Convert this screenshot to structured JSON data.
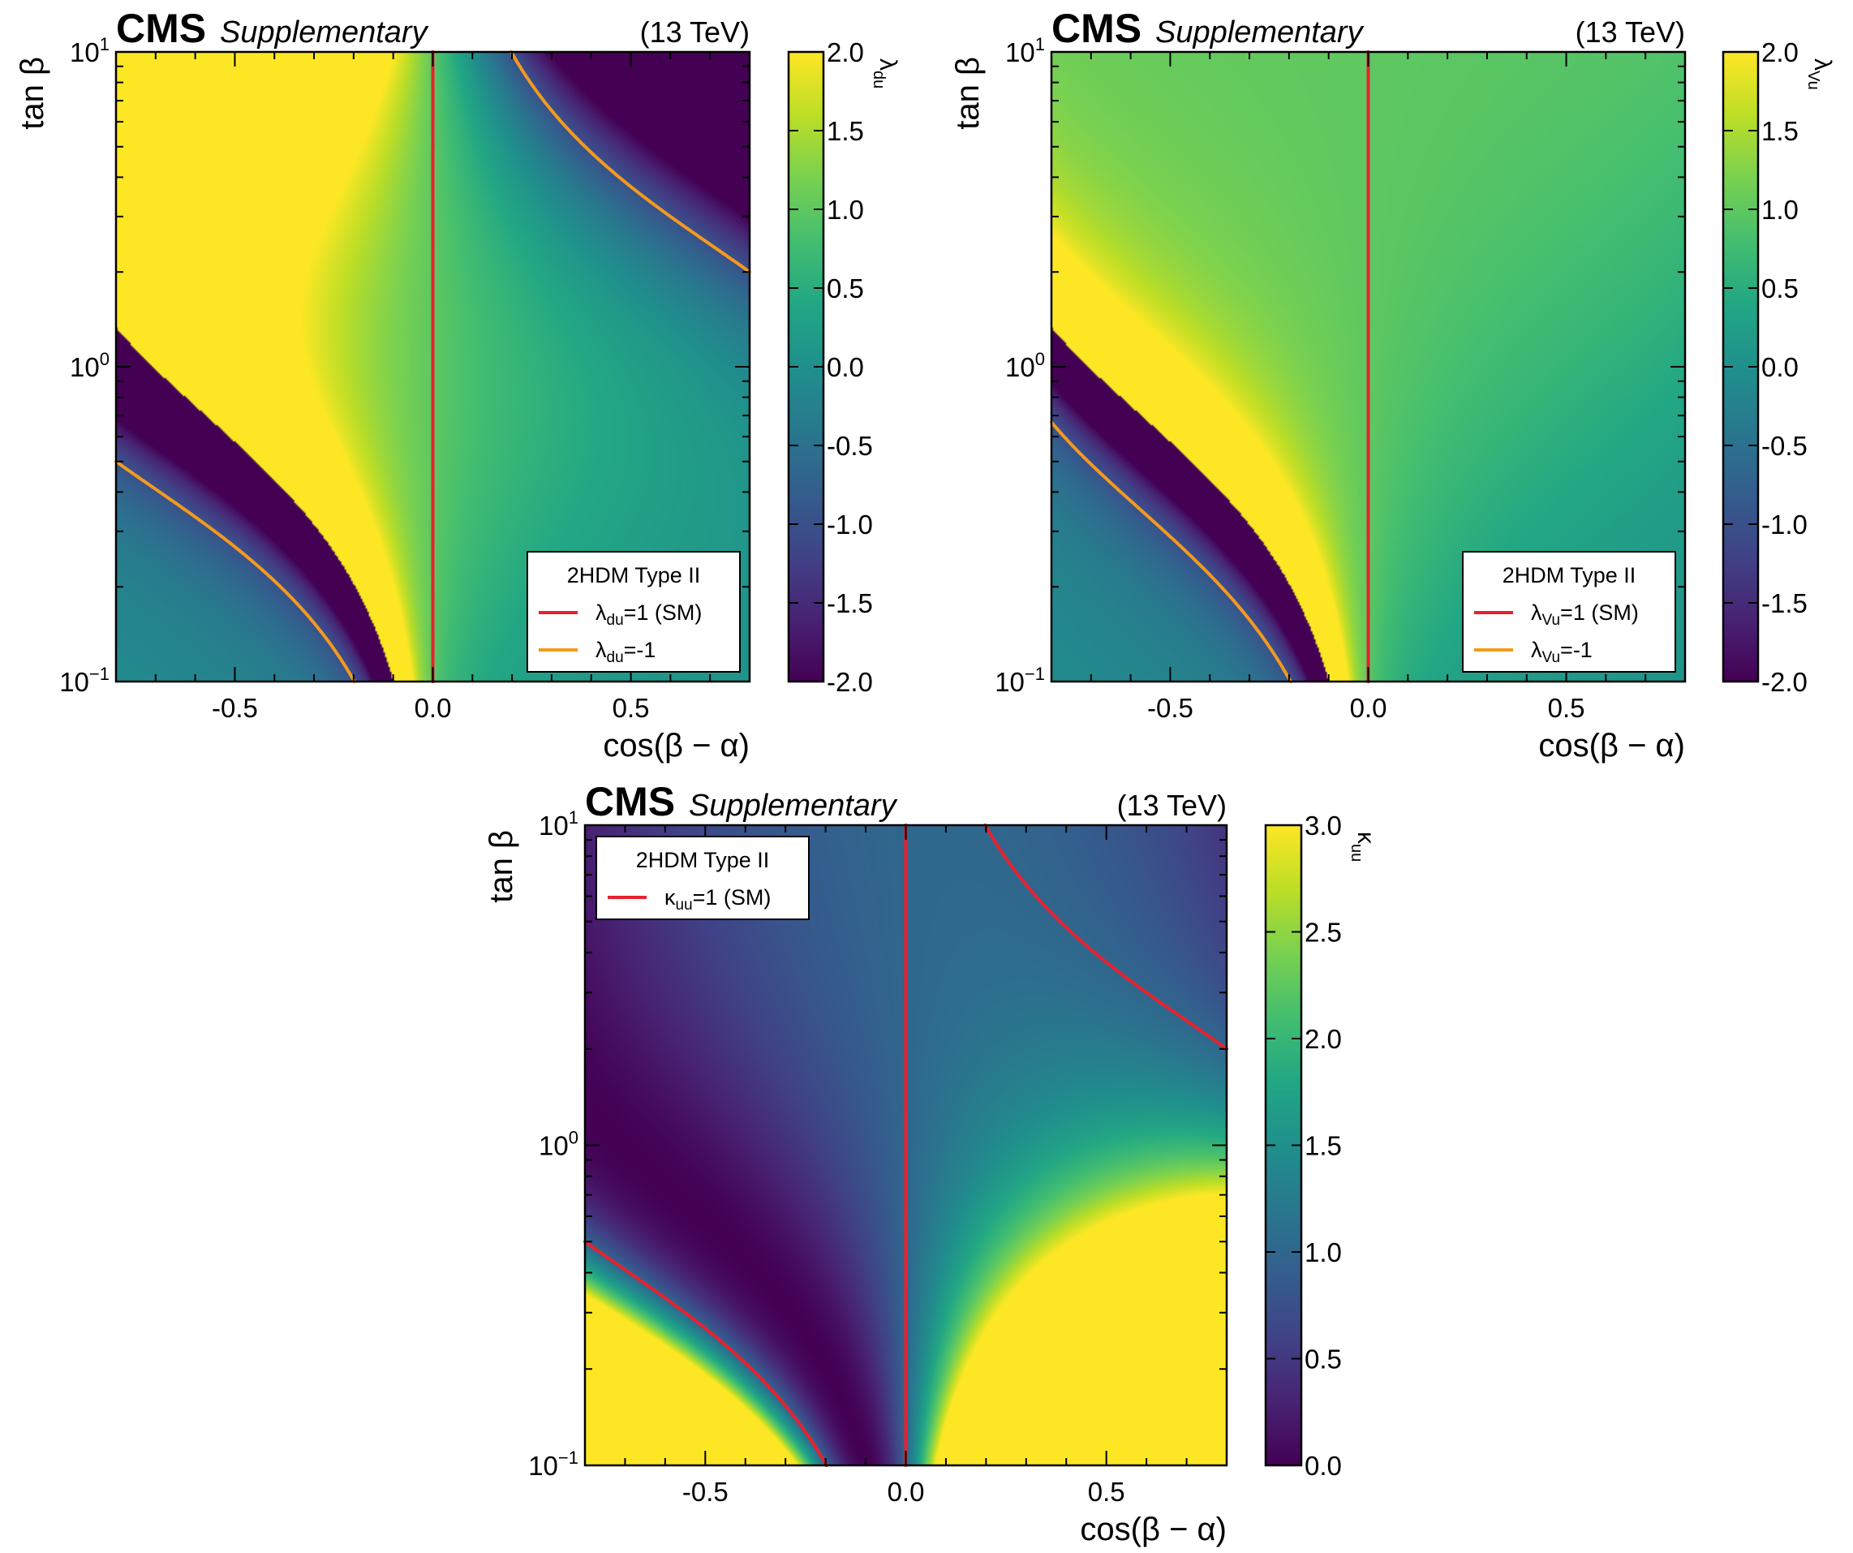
{
  "chart_data": [
    {
      "id": "lambda-du",
      "type": "heatmap",
      "header": {
        "experiment": "CMS",
        "status": "Supplementary",
        "energy": "(13 TeV)"
      },
      "xlabel": "cos(β − α)",
      "ylabel": "tan β",
      "xlim": [
        -0.8,
        0.8
      ],
      "ylim": [
        0.1,
        10
      ],
      "yscale": "log",
      "x_ticks": [
        -0.5,
        0.0,
        0.5
      ],
      "x_tick_labels": [
        "-0.5",
        "0.0",
        "0.5"
      ],
      "y_ticks": [
        0.1,
        1,
        10
      ],
      "y_tick_labels": [
        {
          "base": "10",
          "exp": "−1"
        },
        {
          "base": "10",
          "exp": "0"
        },
        {
          "base": "10",
          "exp": "1"
        }
      ],
      "colorbar": {
        "quantity": "lambda_du",
        "label_symbol": "λ",
        "label_sub": "du",
        "range": [
          -2.0,
          2.0
        ],
        "ticks": [
          2.0,
          1.5,
          1.0,
          0.5,
          0.0,
          -0.5,
          -1.0,
          -1.5,
          -2.0
        ],
        "tick_labels": [
          "2.0",
          "1.5",
          "1.0",
          "0.5",
          "0.0",
          "-0.5",
          "-1.0",
          "-1.5",
          "-2.0"
        ],
        "colormap": "viridis"
      },
      "contours": [
        {
          "level": 1,
          "color": "#e8212e"
        },
        {
          "level": -1,
          "color": "#f39a1e"
        }
      ],
      "legend": {
        "position": "lower-right",
        "title": "2HDM Type II",
        "entries": [
          {
            "symbol": "λ",
            "sub": "du",
            "text": "=1 (SM)",
            "color": "#e8212e"
          },
          {
            "symbol": "λ",
            "sub": "du",
            "text": "=-1",
            "color": "#f39a1e"
          }
        ]
      }
    },
    {
      "id": "lambda-vu",
      "type": "heatmap",
      "header": {
        "experiment": "CMS",
        "status": "Supplementary",
        "energy": "(13 TeV)"
      },
      "xlabel": "cos(β − α)",
      "ylabel": "tan β",
      "xlim": [
        -0.8,
        0.8
      ],
      "ylim": [
        0.1,
        10
      ],
      "yscale": "log",
      "x_ticks": [
        -0.5,
        0.0,
        0.5
      ],
      "x_tick_labels": [
        "-0.5",
        "0.0",
        "0.5"
      ],
      "y_ticks": [
        0.1,
        1,
        10
      ],
      "y_tick_labels": [
        {
          "base": "10",
          "exp": "−1"
        },
        {
          "base": "10",
          "exp": "0"
        },
        {
          "base": "10",
          "exp": "1"
        }
      ],
      "colorbar": {
        "quantity": "lambda_Vu",
        "label_symbol": "λ",
        "label_sub": "Vu",
        "range": [
          -2.0,
          2.0
        ],
        "ticks": [
          2.0,
          1.5,
          1.0,
          0.5,
          0.0,
          -0.5,
          -1.0,
          -1.5,
          -2.0
        ],
        "tick_labels": [
          "2.0",
          "1.5",
          "1.0",
          "0.5",
          "0.0",
          "-0.5",
          "-1.0",
          "-1.5",
          "-2.0"
        ],
        "colormap": "viridis"
      },
      "contours": [
        {
          "level": 1,
          "color": "#e8212e"
        },
        {
          "level": -1,
          "color": "#f39a1e"
        }
      ],
      "legend": {
        "position": "lower-right",
        "title": "2HDM Type II",
        "entries": [
          {
            "symbol": "λ",
            "sub": "Vu",
            "text": "=1 (SM)",
            "color": "#e8212e"
          },
          {
            "symbol": "λ",
            "sub": "Vu",
            "text": "=-1",
            "color": "#f39a1e"
          }
        ]
      }
    },
    {
      "id": "kappa-uu",
      "type": "heatmap",
      "header": {
        "experiment": "CMS",
        "status": "Supplementary",
        "energy": "(13 TeV)"
      },
      "xlabel": "cos(β − α)",
      "ylabel": "tan β",
      "xlim": [
        -0.8,
        0.8
      ],
      "ylim": [
        0.1,
        10
      ],
      "yscale": "log",
      "x_ticks": [
        -0.5,
        0.0,
        0.5
      ],
      "x_tick_labels": [
        "-0.5",
        "0.0",
        "0.5"
      ],
      "y_ticks": [
        0.1,
        1,
        10
      ],
      "y_tick_labels": [
        {
          "base": "10",
          "exp": "−1"
        },
        {
          "base": "10",
          "exp": "0"
        },
        {
          "base": "10",
          "exp": "1"
        }
      ],
      "colorbar": {
        "quantity": "kappa_uu",
        "label_symbol": "κ",
        "label_sub": "uu",
        "range": [
          0.0,
          3.0
        ],
        "ticks": [
          3.0,
          2.5,
          2.0,
          1.5,
          1.0,
          0.5,
          0.0
        ],
        "tick_labels": [
          "3.0",
          "2.5",
          "2.0",
          "1.5",
          "1.0",
          "0.5",
          "0.0"
        ],
        "colormap": "viridis"
      },
      "contours": [
        {
          "level": 1,
          "color": "#e8212e"
        }
      ],
      "legend": {
        "position": "upper-left",
        "title": "2HDM Type II",
        "entries": [
          {
            "symbol": "κ",
            "sub": "uu",
            "text": "=1 (SM)",
            "color": "#e8212e"
          }
        ]
      }
    }
  ]
}
